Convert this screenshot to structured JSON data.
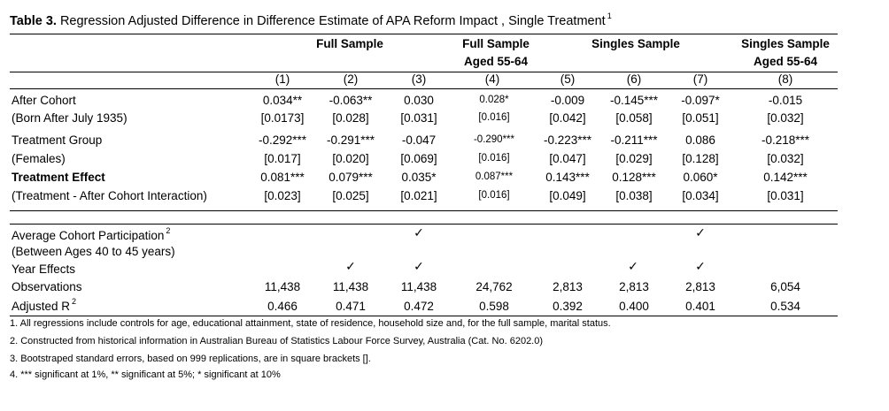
{
  "title": {
    "bold": "Table 3.",
    "text": " Regression Adjusted Difference in Difference Estimate of APA Reform Impact , Single Treatment",
    "sup": "1"
  },
  "headers": {
    "full_sample": "Full Sample",
    "full_sample_aged_l1": "Full Sample",
    "full_sample_aged_l2": "Aged 55-64",
    "singles_sample": "Singles Sample",
    "singles_sample_aged_l1": "Singles Sample",
    "singles_sample_aged_l2": "Aged 55-64"
  },
  "columns": [
    "(1)",
    "(2)",
    "(3)",
    "(4)",
    "(5)",
    "(6)",
    "(7)",
    "(8)"
  ],
  "rows": [
    {
      "label": "After Cohort",
      "bold": false,
      "values": [
        "0.034**",
        "-0.063**",
        "0.030",
        "0.028*",
        "-0.009",
        "-0.145***",
        "-0.097*",
        "-0.015"
      ]
    },
    {
      "label": "(Born After July 1935)",
      "bold": false,
      "values": [
        "[0.0173]",
        "[0.028]",
        "[0.031]",
        "[0.016]",
        "[0.042]",
        "[0.058]",
        "[0.051]",
        "[0.032]"
      ]
    },
    {
      "label": "Treatment Group",
      "bold": false,
      "values": [
        "-0.292***",
        "-0.291***",
        "-0.047",
        "-0.290***",
        "-0.223***",
        "-0.211***",
        "0.086",
        "-0.218***"
      ]
    },
    {
      "label": "(Females)",
      "bold": false,
      "values": [
        "[0.017]",
        "[0.020]",
        "[0.069]",
        "[0.016]",
        "[0.047]",
        "[0.029]",
        "[0.128]",
        "[0.032]"
      ]
    },
    {
      "label": "Treatment Effect",
      "bold": true,
      "values": [
        "0.081***",
        "0.079***",
        "0.035*",
        "0.087***",
        "0.143***",
        "0.128***",
        "0.060*",
        "0.142***"
      ]
    },
    {
      "label": "(Treatment - After Cohort Interaction)",
      "bold": false,
      "values": [
        "[0.023]",
        "[0.025]",
        "[0.021]",
        "[0.016]",
        "[0.049]",
        "[0.038]",
        "[0.034]",
        "[0.031]"
      ]
    }
  ],
  "controls": {
    "avg_cohort_label": "Average Cohort Participation",
    "avg_cohort_sup": "2",
    "avg_cohort_label2": "(Between Ages 40 to 45 years)",
    "year_effects_label": "Year Effects",
    "check": "✓",
    "observations_label": "Observations",
    "observations": [
      "11,438",
      "11,438",
      "11,438",
      "24,762",
      "2,813",
      "2,813",
      "2,813",
      "6,054"
    ],
    "adj_r2_label": "Adjusted R",
    "adj_r2_sup": "2",
    "adj_r2": [
      "0.466",
      "0.471",
      "0.472",
      "0.598",
      "0.392",
      "0.400",
      "0.401",
      "0.534"
    ]
  },
  "notes": [
    "1. All regressions include controls for age, educational attainment, state of residence, household size and, for the full sample, marital status.",
    "2. Constructed from historical information in Australian Bureau of Statistics Labour Force Survey, Australia (Cat. No. 6202.0)",
    "3. Bootstraped standard errors, based on 999 replications, are in square brackets [].",
    "4. *** significant at 1%, ** significant at 5%; * significant at 10%"
  ]
}
